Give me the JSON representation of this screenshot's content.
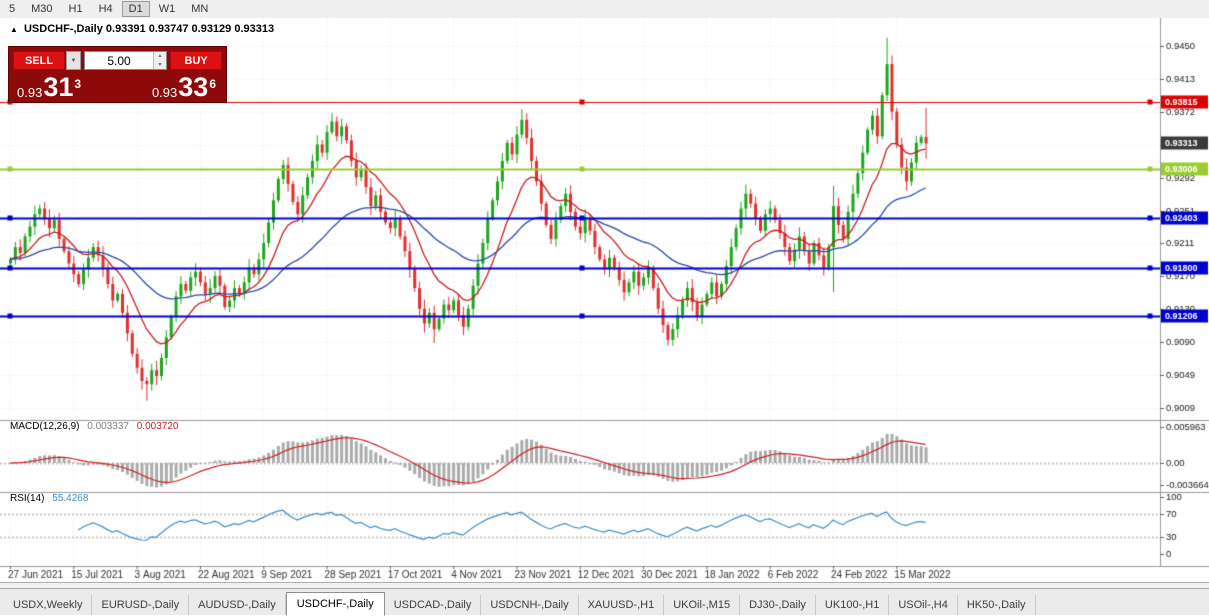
{
  "toolbar": {
    "items": [
      "5",
      "M30",
      "H1",
      "H4",
      "D1",
      "W1",
      "MN"
    ],
    "active": "D1"
  },
  "chart_header": {
    "arrow": "▲",
    "symbol": "USDCHF-,Daily",
    "ohlc": "0.93391 0.93747 0.93129 0.93313"
  },
  "trade_panel": {
    "sell_label": "SELL",
    "buy_label": "BUY",
    "volume": "5.00",
    "sell_price": {
      "prefix": "0.93",
      "big": "31",
      "sup": "3"
    },
    "buy_price": {
      "prefix": "0.93",
      "big": "33",
      "sup": "6"
    }
  },
  "price_scale": {
    "labels": [
      "0.9450",
      "0.9413",
      "0.9372",
      "0.9331",
      "0.9292",
      "0.9251",
      "0.9211",
      "0.9170",
      "0.9130",
      "0.9090",
      "0.9049",
      "0.9009"
    ],
    "current": "0.93313",
    "current_badge_color": "#3A3A3A"
  },
  "levels": [
    {
      "price": 0.93815,
      "label": "0.93815",
      "color": "#DD0000",
      "width": 1.2
    },
    {
      "price": 0.93006,
      "label": "0.93006",
      "color": "#9ACD32",
      "width": 2.2
    },
    {
      "price": 0.92403,
      "label": "0.92403",
      "color": "#0000CC",
      "width": 2
    },
    {
      "price": 0.918,
      "label": "0.91800",
      "color": "#0000CC",
      "width": 2
    },
    {
      "price": 0.91206,
      "label": "0.91206",
      "color": "#0000CC",
      "width": 2
    }
  ],
  "indicators": {
    "macd": {
      "name": "MACD(12,26,9)",
      "value_main": "0.003337",
      "value_signal": "0.003720",
      "scale_top": "0.005963",
      "scale_zero": "0.00",
      "scale_bottom": "-0.003664",
      "histogram_color": "#ABABAB",
      "signal_color": "#CC2222"
    },
    "rsi": {
      "name": "RSI(14)",
      "value": "55.4268",
      "scale": [
        "100",
        "70",
        "30",
        "0"
      ],
      "line_color": "#3F8FC9"
    }
  },
  "x_axis": {
    "labels": [
      "27 Jun 2021",
      "15 Jul 2021",
      "3 Aug 2021",
      "22 Aug 2021",
      "9 Sep 2021",
      "28 Sep 2021",
      "17 Oct 2021",
      "4 Nov 2021",
      "23 Nov 2021",
      "12 Dec 2021",
      "30 Dec 2021",
      "18 Jan 2022",
      "6 Feb 2022",
      "24 Feb 2022",
      "15 Mar 2022"
    ]
  },
  "tabs": {
    "items": [
      "USDX,Weekly",
      "EURUSD-,Daily",
      "AUDUSD-,Daily",
      "USDCHF-,Daily",
      "USDCAD-,Daily",
      "USDCNH-,Daily",
      "XAUUSD-,H1",
      "UKOil-,M15",
      "DJ30-,Daily",
      "UK100-,H1",
      "USOil-,H4",
      "HK50-,Daily"
    ],
    "active_index": 3
  },
  "chart_data": {
    "type": "candlestick",
    "symbol": "USDCHF-",
    "period": "Daily",
    "bars": 189,
    "ylim": [
      0.9009,
      0.945
    ],
    "first_open": 0.9185,
    "default_wick": 0.0007,
    "bull_color": "#1EA51E",
    "bear_color": "#E03030",
    "ma_fast": {
      "period": 12,
      "color": "#C81E1E"
    },
    "ma_slow": {
      "period": 40,
      "color": "#2B49AE"
    },
    "closes": [
      0.919,
      0.9205,
      0.9198,
      0.9218,
      0.923,
      0.9245,
      0.9252,
      0.924,
      0.9228,
      0.9238,
      0.9215,
      0.92,
      0.9185,
      0.9172,
      0.916,
      0.9178,
      0.9192,
      0.9205,
      0.9195,
      0.918,
      0.916,
      0.914,
      0.9148,
      0.9125,
      0.91,
      0.9075,
      0.9058,
      0.9042,
      0.9038,
      0.9055,
      0.9048,
      0.907,
      0.9095,
      0.912,
      0.9145,
      0.916,
      0.9152,
      0.9168,
      0.9175,
      0.9162,
      0.9148,
      0.9155,
      0.917,
      0.9158,
      0.9132,
      0.914,
      0.9155,
      0.9148,
      0.9162,
      0.918,
      0.9172,
      0.919,
      0.921,
      0.9235,
      0.9262,
      0.9288,
      0.9305,
      0.9282,
      0.926,
      0.9245,
      0.9268,
      0.929,
      0.931,
      0.933,
      0.932,
      0.9345,
      0.9358,
      0.934,
      0.9352,
      0.9335,
      0.931,
      0.929,
      0.93,
      0.9278,
      0.9255,
      0.9268,
      0.9248,
      0.9235,
      0.9228,
      0.924,
      0.9218,
      0.92,
      0.9178,
      0.9155,
      0.913,
      0.9112,
      0.9125,
      0.9105,
      0.9118,
      0.9135,
      0.9128,
      0.914,
      0.9122,
      0.9108,
      0.913,
      0.9158,
      0.9185,
      0.921,
      0.924,
      0.9262,
      0.9285,
      0.931,
      0.9332,
      0.9318,
      0.9342,
      0.936,
      0.9338,
      0.931,
      0.9285,
      0.9258,
      0.9232,
      0.9215,
      0.9238,
      0.9255,
      0.927,
      0.9248,
      0.923,
      0.9222,
      0.924,
      0.9225,
      0.9205,
      0.919,
      0.9178,
      0.9192,
      0.918,
      0.9165,
      0.915,
      0.9162,
      0.9175,
      0.9158,
      0.9168,
      0.918,
      0.9155,
      0.913,
      0.911,
      0.9092,
      0.9105,
      0.9122,
      0.914,
      0.9155,
      0.9138,
      0.912,
      0.9135,
      0.9148,
      0.9162,
      0.9145,
      0.916,
      0.9182,
      0.9205,
      0.9228,
      0.9252,
      0.927,
      0.9258,
      0.924,
      0.9225,
      0.9245,
      0.9252,
      0.9238,
      0.9222,
      0.9205,
      0.9188,
      0.9202,
      0.9218,
      0.92,
      0.9185,
      0.921,
      0.9195,
      0.918,
      0.9205,
      0.9255,
      0.9232,
      0.9215,
      0.9248,
      0.927,
      0.9295,
      0.932,
      0.9348,
      0.9365,
      0.934,
      0.939,
      0.9428,
      0.937,
      0.933,
      0.9302,
      0.9285,
      0.9308,
      0.9332,
      0.9339,
      0.93313
    ],
    "overrides": {
      "28": {
        "low": 0.9018
      },
      "66": {
        "high": 0.9368
      },
      "87": {
        "low": 0.9088
      },
      "105": {
        "high": 0.9373
      },
      "135": {
        "low": 0.9085
      },
      "169": {
        "high": 0.928,
        "low": 0.915
      },
      "180": {
        "high": 0.946
      },
      "188": {
        "open": 0.93391,
        "high": 0.93747,
        "low": 0.93129
      }
    },
    "last_candle": {
      "open": 0.93391,
      "high": 0.93747,
      "low": 0.93129,
      "close": 0.93313
    }
  }
}
